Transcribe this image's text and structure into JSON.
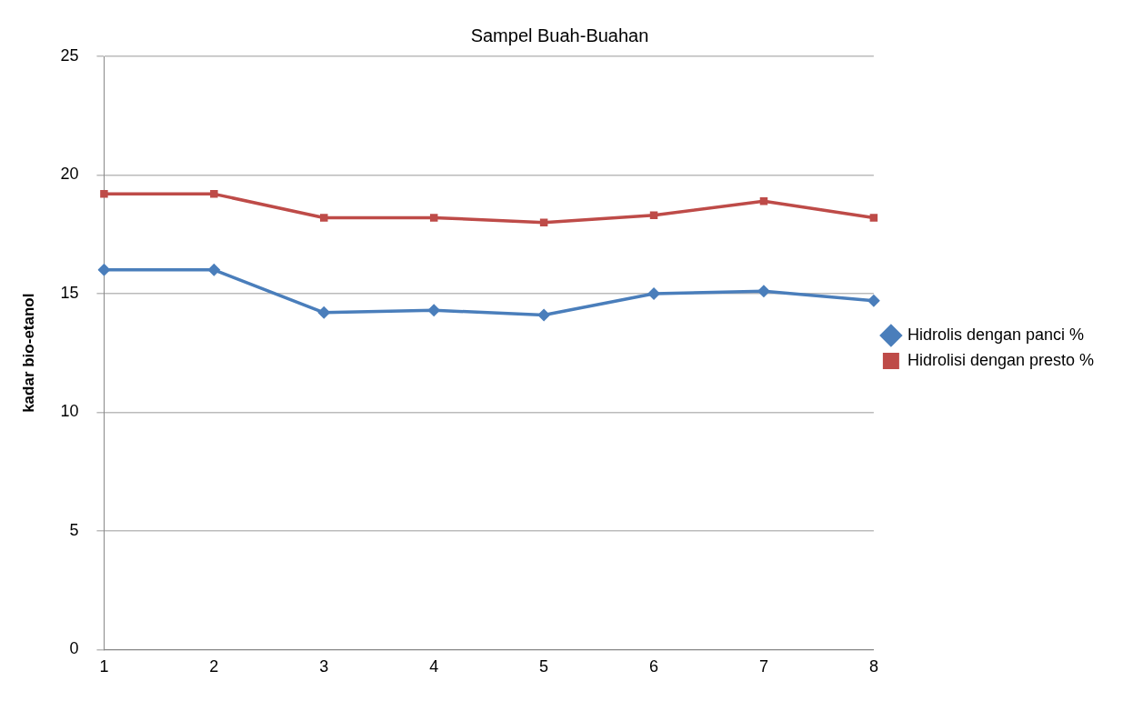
{
  "chart_data": {
    "type": "line",
    "title": "Sampel Buah-Buahan",
    "ylabel": "kadar bio-etanol",
    "categories": [
      "1",
      "2",
      "3",
      "4",
      "5",
      "6",
      "7",
      "8"
    ],
    "series": [
      {
        "name": "Hidrolis dengan panci %",
        "color": "#4a7ebb",
        "marker": "diamond",
        "values": [
          16.0,
          16.0,
          14.2,
          14.3,
          14.1,
          15.0,
          15.1,
          14.7
        ]
      },
      {
        "name": "Hidrolisi dengan presto %",
        "color": "#be4b48",
        "marker": "square",
        "values": [
          19.2,
          19.2,
          18.2,
          18.2,
          18.0,
          18.3,
          18.9,
          18.2
        ]
      }
    ],
    "ylim": [
      0,
      25
    ],
    "yticks": [
      0,
      5,
      10,
      15,
      20,
      25
    ],
    "grid": "y",
    "legend": "right",
    "line_style": "solid"
  }
}
